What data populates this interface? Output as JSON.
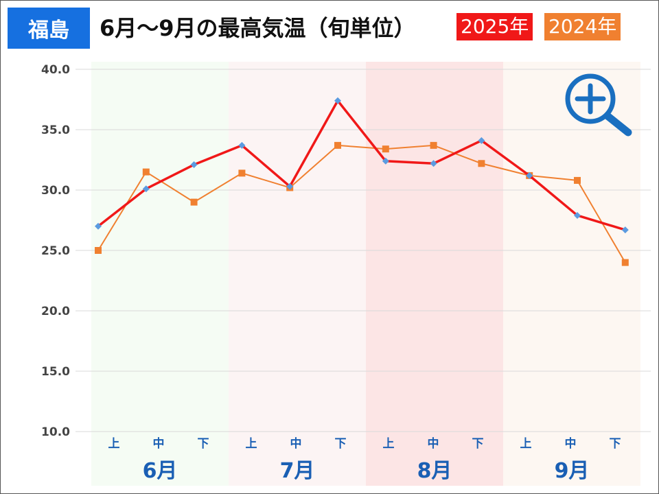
{
  "header": {
    "place": "福島",
    "title": "6月～9月の最高気温（旬単位）"
  },
  "colors": {
    "place_badge": "#1670e0",
    "s2025": "#f01818",
    "s2024": "#f08030",
    "axis_text": "#1a5fb4",
    "bands": [
      "#f5fcf4",
      "#fcf4f4",
      "#fce5e5",
      "#fdf7f2"
    ]
  },
  "zoom": {
    "icon": "zoom-in-magnifier-icon"
  },
  "chart_data": {
    "type": "line",
    "months": [
      "6月",
      "7月",
      "8月",
      "9月"
    ],
    "categories": [
      "上",
      "中",
      "下",
      "上",
      "中",
      "下",
      "上",
      "中",
      "下",
      "上",
      "中",
      "下"
    ],
    "ylim": [
      10,
      40
    ],
    "yticks": [
      "10.0",
      "15.0",
      "20.0",
      "25.0",
      "30.0",
      "35.0",
      "40.0"
    ],
    "grid": true,
    "legend": "top-right",
    "series": [
      {
        "name": "2025年",
        "color": "#f01818",
        "marker": "diamond",
        "values": [
          27.0,
          30.1,
          32.1,
          33.7,
          30.3,
          37.4,
          32.4,
          32.2,
          34.1,
          31.2,
          27.9,
          26.7
        ]
      },
      {
        "name": "2024年",
        "color": "#f08030",
        "marker": "square",
        "values": [
          25.0,
          31.5,
          29.0,
          31.4,
          30.2,
          33.7,
          33.4,
          33.7,
          32.2,
          31.2,
          30.8,
          24.0
        ]
      }
    ]
  }
}
